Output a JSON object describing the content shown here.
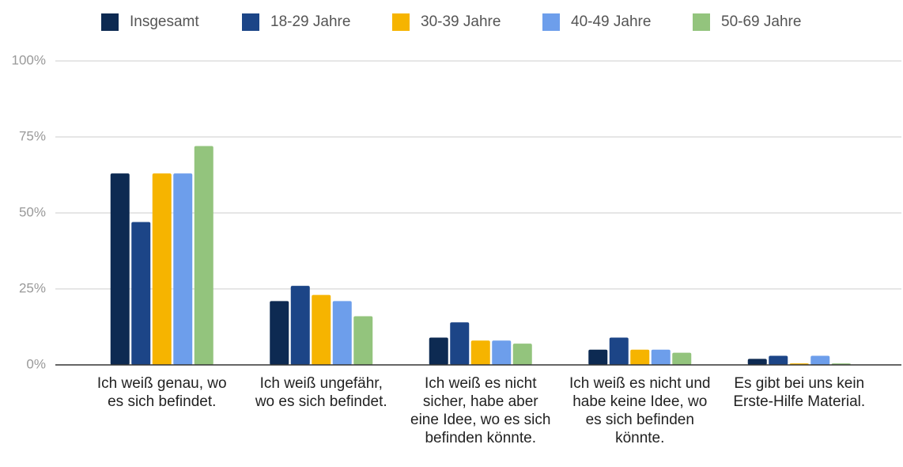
{
  "chart_data": {
    "type": "bar",
    "categories": [
      "Ich weiß genau, wo es sich befindet.",
      "Ich weiß ungefähr, wo es sich befindet.",
      "Ich weiß es nicht sicher, habe aber eine Idee, wo es sich befinden könnte.",
      "Ich weiß es nicht und habe keine Idee, wo es sich befinden könnte.",
      "Es gibt bei uns kein Erste-Hilfe Material."
    ],
    "series": [
      {
        "name": "Insgesamt",
        "color": "#0d2a52",
        "values": [
          63,
          21,
          9,
          5,
          2
        ]
      },
      {
        "name": "18-29 Jahre",
        "color": "#1c4587",
        "values": [
          47,
          26,
          14,
          9,
          3
        ]
      },
      {
        "name": "30-39 Jahre",
        "color": "#f6b400",
        "values": [
          63,
          23,
          8,
          5,
          0.5
        ]
      },
      {
        "name": "40-49 Jahre",
        "color": "#6d9eeb",
        "values": [
          63,
          21,
          8,
          5,
          3
        ]
      },
      {
        "name": "50-69 Jahre",
        "color": "#93c47d",
        "values": [
          72,
          16,
          7,
          4,
          0.5
        ]
      }
    ],
    "ylim": [
      0,
      100
    ],
    "yticks": [
      {
        "value": 0,
        "label": "0%"
      },
      {
        "value": 25,
        "label": "25%"
      },
      {
        "value": 50,
        "label": "50%"
      },
      {
        "value": 75,
        "label": "75%"
      },
      {
        "value": 100,
        "label": "100%"
      }
    ],
    "grid": true,
    "legend": "top"
  }
}
